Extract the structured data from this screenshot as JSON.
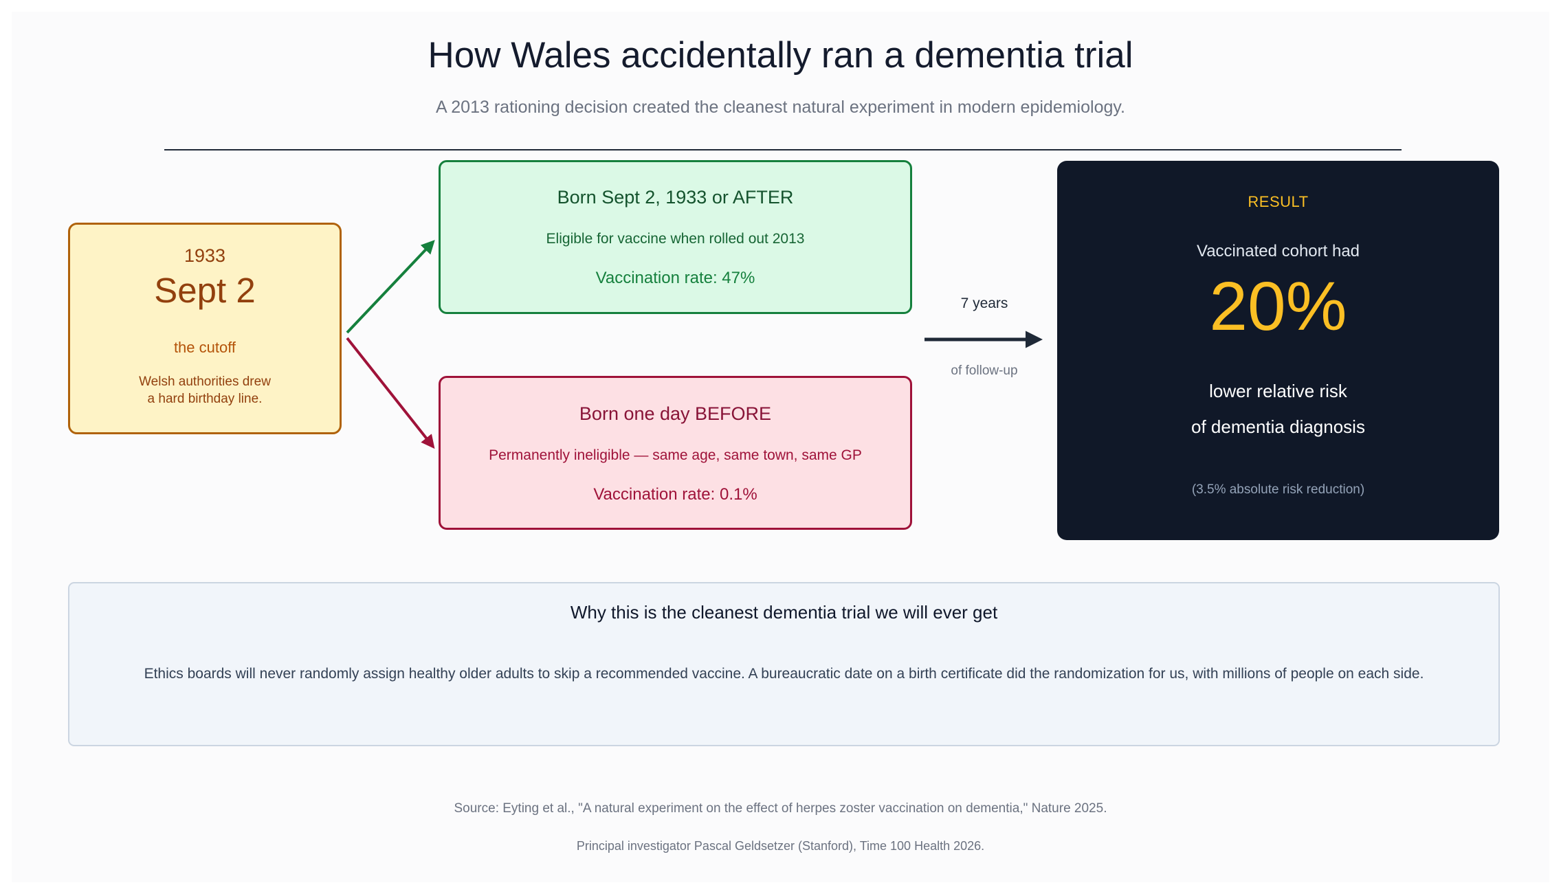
{
  "title": "How Wales accidentally ran a dementia trial",
  "subtitle": "A 2013 rationing decision created the cleanest natural experiment in modern epidemiology.",
  "cutoff": {
    "year": "1933",
    "date": "Sept 2",
    "label": "the cutoff",
    "note": "Welsh authorities drew\na hard birthday line.",
    "color": "#b0620a"
  },
  "after_group": {
    "title": "Born Sept 2, 1933 or AFTER",
    "description": "Eligible for vaccine when rolled out 2013",
    "rate": "Vaccination rate: 47%",
    "color": "#15803d"
  },
  "before_group": {
    "title": "Born one day BEFORE",
    "description": "Permanently ineligible — same age, same town, same GP",
    "rate": "Vaccination rate: 0.1%",
    "color": "#9f1239"
  },
  "follow_up": {
    "duration": "7 years",
    "label": "of follow-up"
  },
  "result": {
    "heading": "RESULT",
    "lead": "Vaccinated cohort had",
    "value": "20%",
    "line1": "lower relative risk",
    "line2": "of dementia diagnosis",
    "note": "(3.5% absolute risk reduction)",
    "accent_color": "#fbbf24",
    "background_color": "#101828"
  },
  "why": {
    "title": "Why this is the cleanest dementia trial we will ever get",
    "body": "Ethics boards will never randomly assign healthy older adults to skip a recommended vaccine. A bureaucratic date on a birth certificate did the randomization for us, with millions of people on each side."
  },
  "source": {
    "line1": "Source: Eyting et al., \"A natural experiment on the effect of herpes zoster vaccination on dementia,\" Nature 2025.",
    "line2": "Principal investigator Pascal Geldsetzer (Stanford), Time 100 Health 2026."
  }
}
